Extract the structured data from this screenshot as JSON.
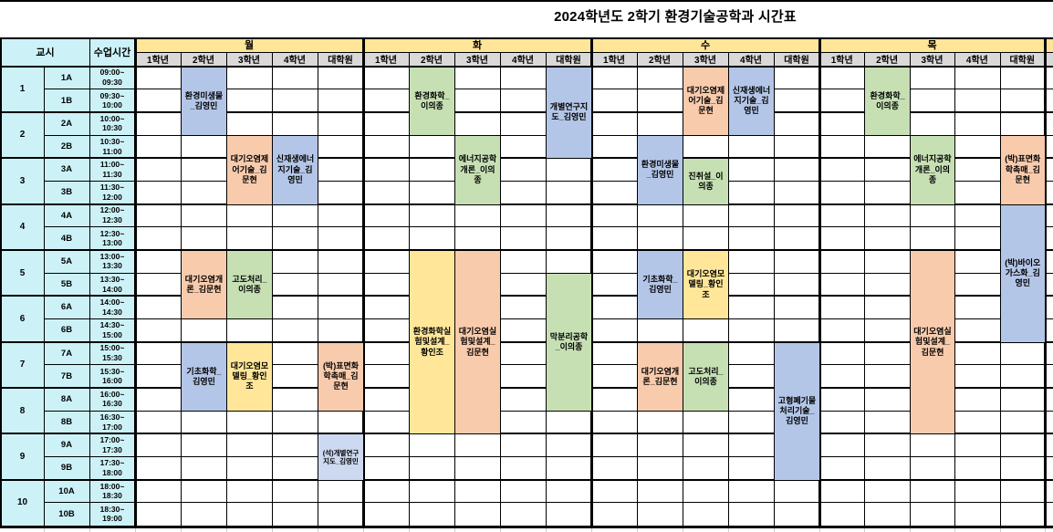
{
  "title": "2024학년도 2학기 환경기술공학과 시간표",
  "header": {
    "period_label": "교시",
    "time_label": "수업시간",
    "days": [
      "월",
      "화",
      "수",
      "목"
    ],
    "day_keys": [
      "mon",
      "tue",
      "wed",
      "thu"
    ],
    "year_columns": [
      "1학년",
      "2학년",
      "3학년",
      "4학년",
      "대학원"
    ]
  },
  "periods": [
    {
      "no": "1",
      "slots": [
        {
          "label": "1A",
          "time": "09:00~\n09:30"
        },
        {
          "label": "1B",
          "time": "09:30~\n10:00"
        }
      ]
    },
    {
      "no": "2",
      "slots": [
        {
          "label": "2A",
          "time": "10:00~\n10:30"
        },
        {
          "label": "2B",
          "time": "10:30~\n11:00"
        }
      ]
    },
    {
      "no": "3",
      "slots": [
        {
          "label": "3A",
          "time": "11:00~\n11:30"
        },
        {
          "label": "3B",
          "time": "11:30~\n12:00"
        }
      ]
    },
    {
      "no": "4",
      "slots": [
        {
          "label": "4A",
          "time": "12:00~\n12:30"
        },
        {
          "label": "4B",
          "time": "12:30~\n13:00"
        }
      ]
    },
    {
      "no": "5",
      "slots": [
        {
          "label": "5A",
          "time": "13:00~\n13:30"
        },
        {
          "label": "5B",
          "time": "13:30~\n14:00"
        }
      ]
    },
    {
      "no": "6",
      "slots": [
        {
          "label": "6A",
          "time": "14:00~\n14:30"
        },
        {
          "label": "6B",
          "time": "14:30~\n15:00"
        }
      ]
    },
    {
      "no": "7",
      "slots": [
        {
          "label": "7A",
          "time": "15:00~\n15:30"
        },
        {
          "label": "7B",
          "time": "15:30~\n16:00"
        }
      ]
    },
    {
      "no": "8",
      "slots": [
        {
          "label": "8A",
          "time": "16:00~\n16:30"
        },
        {
          "label": "8B",
          "time": "16:30~\n17:00"
        }
      ]
    },
    {
      "no": "9",
      "slots": [
        {
          "label": "9A",
          "time": "17:00~\n17:30"
        },
        {
          "label": "9B",
          "time": "17:30~\n18:00"
        }
      ]
    },
    {
      "no": "10",
      "slots": [
        {
          "label": "10A",
          "time": "18:00~\n18:30"
        },
        {
          "label": "10B",
          "time": "18:30~\n19:00"
        }
      ]
    }
  ],
  "palette": {
    "blue": "#b4c6e7",
    "green": "#c6e0b4",
    "orange": "#f8cbad",
    "yellow": "#ffe699",
    "lightblue": "#cdd9f0",
    "day_header": "#ffe598",
    "year_header": "#d9d9d9",
    "time_band": "#ccf2f8",
    "grid_line": "#000000"
  },
  "courses": [
    {
      "day": 0,
      "year": 1,
      "from": 0,
      "to": 2,
      "name": "환경미생물_김영민",
      "color": "blue"
    },
    {
      "day": 0,
      "year": 2,
      "from": 3,
      "to": 5,
      "name": "대기오염제어기술_김문현",
      "color": "orange"
    },
    {
      "day": 0,
      "year": 3,
      "from": 3,
      "to": 5,
      "name": "신재생에너지기술_김영민",
      "color": "blue"
    },
    {
      "day": 0,
      "year": 1,
      "from": 8,
      "to": 10,
      "name": "대기오염개론_김문현",
      "color": "orange"
    },
    {
      "day": 0,
      "year": 2,
      "from": 8,
      "to": 10,
      "name": "고도처리_이의종",
      "color": "green"
    },
    {
      "day": 0,
      "year": 1,
      "from": 12,
      "to": 14,
      "name": "기초화학_김영민",
      "color": "blue"
    },
    {
      "day": 0,
      "year": 2,
      "from": 12,
      "to": 14,
      "name": "대기오염모델링_황인조",
      "color": "yellow"
    },
    {
      "day": 0,
      "year": 4,
      "from": 12,
      "to": 14,
      "name": "(박)표면화학촉매_김문현",
      "color": "orange"
    },
    {
      "day": 0,
      "year": 4,
      "from": 16,
      "to": 17,
      "name": "(석)개별연구지도_김영민",
      "color": "lightblue",
      "small": true
    },
    {
      "day": 1,
      "year": 1,
      "from": 0,
      "to": 2,
      "name": "환경화학_이의종",
      "color": "green"
    },
    {
      "day": 1,
      "year": 4,
      "from": 0,
      "to": 3,
      "name": "개별연구지도_김영민",
      "color": "blue"
    },
    {
      "day": 1,
      "year": 2,
      "from": 3,
      "to": 5,
      "name": "에너지공학개론_이의종",
      "color": "green"
    },
    {
      "day": 1,
      "year": 1,
      "from": 8,
      "to": 15,
      "name": "환경화학실험및설계_황인조",
      "color": "yellow"
    },
    {
      "day": 1,
      "year": 2,
      "from": 8,
      "to": 15,
      "name": "대기오염실험및설계_김문현",
      "color": "orange"
    },
    {
      "day": 1,
      "year": 4,
      "from": 9,
      "to": 14,
      "name": "막분리공학_이의종",
      "color": "green"
    },
    {
      "day": 2,
      "year": 2,
      "from": 0,
      "to": 2,
      "name": "대기오염제어기술_김문현",
      "color": "orange"
    },
    {
      "day": 2,
      "year": 3,
      "from": 0,
      "to": 2,
      "name": "신재생에너지기술_김영민",
      "color": "blue"
    },
    {
      "day": 2,
      "year": 1,
      "from": 3,
      "to": 5,
      "name": "환경미생물_김영민",
      "color": "blue"
    },
    {
      "day": 2,
      "year": 2,
      "from": 4,
      "to": 5,
      "name": "진취설_이의종",
      "color": "green"
    },
    {
      "day": 2,
      "year": 1,
      "from": 8,
      "to": 10,
      "name": "기초화학_김영민",
      "color": "blue"
    },
    {
      "day": 2,
      "year": 2,
      "from": 8,
      "to": 10,
      "name": "대기오염모델링_황인조",
      "color": "yellow"
    },
    {
      "day": 2,
      "year": 1,
      "from": 12,
      "to": 14,
      "name": "대기오염개론_김문현",
      "color": "orange"
    },
    {
      "day": 2,
      "year": 2,
      "from": 12,
      "to": 14,
      "name": "고도처리_이의종",
      "color": "green"
    },
    {
      "day": 2,
      "year": 4,
      "from": 12,
      "to": 17,
      "name": "고형폐기물처리기술_김영민",
      "color": "blue"
    },
    {
      "day": 3,
      "year": 1,
      "from": 0,
      "to": 2,
      "name": "환경화학_이의종",
      "color": "green"
    },
    {
      "day": 3,
      "year": 2,
      "from": 3,
      "to": 5,
      "name": "에너지공학개론_이의종",
      "color": "green"
    },
    {
      "day": 3,
      "year": 4,
      "from": 3,
      "to": 5,
      "name": "(박)표면화학촉매_김문현",
      "color": "orange"
    },
    {
      "day": 3,
      "year": 4,
      "from": 6,
      "to": 11,
      "name": "(박)바이오가스화_김영민",
      "color": "blue"
    },
    {
      "day": 3,
      "year": 2,
      "from": 8,
      "to": 15,
      "name": "대기오염실험및설계_김문현",
      "color": "orange"
    }
  ]
}
